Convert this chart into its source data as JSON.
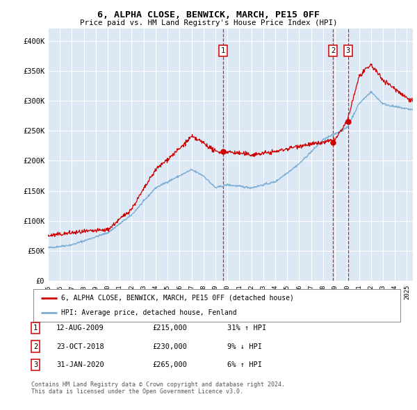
{
  "title": "6, ALPHA CLOSE, BENWICK, MARCH, PE15 0FF",
  "subtitle": "Price paid vs. HM Land Registry's House Price Index (HPI)",
  "red_label": "6, ALPHA CLOSE, BENWICK, MARCH, PE15 0FF (detached house)",
  "blue_label": "HPI: Average price, detached house, Fenland",
  "footnote1": "Contains HM Land Registry data © Crown copyright and database right 2024.",
  "footnote2": "This data is licensed under the Open Government Licence v3.0.",
  "transactions": [
    {
      "num": 1,
      "date": "12-AUG-2009",
      "price": "£215,000",
      "hpi": "31% ↑ HPI",
      "year": 2009.62,
      "price_val": 215000
    },
    {
      "num": 2,
      "date": "23-OCT-2018",
      "price": "£230,000",
      "hpi": "9% ↓ HPI",
      "year": 2018.82,
      "price_val": 230000
    },
    {
      "num": 3,
      "date": "31-JAN-2020",
      "price": "£265,000",
      "hpi": "6% ↑ HPI",
      "year": 2020.08,
      "price_val": 265000
    }
  ],
  "ylim": [
    0,
    420000
  ],
  "xlim_start": 1995.0,
  "xlim_end": 2025.5,
  "plot_bg": "#dde8f5",
  "red_color": "#cc0000",
  "blue_color": "#7aaed4",
  "grid_color": "#ffffff",
  "yticks": [
    0,
    50000,
    100000,
    150000,
    200000,
    250000,
    300000,
    350000,
    400000
  ],
  "ytick_labels": [
    "£0",
    "£50K",
    "£100K",
    "£150K",
    "£200K",
    "£250K",
    "£300K",
    "£350K",
    "£400K"
  ]
}
